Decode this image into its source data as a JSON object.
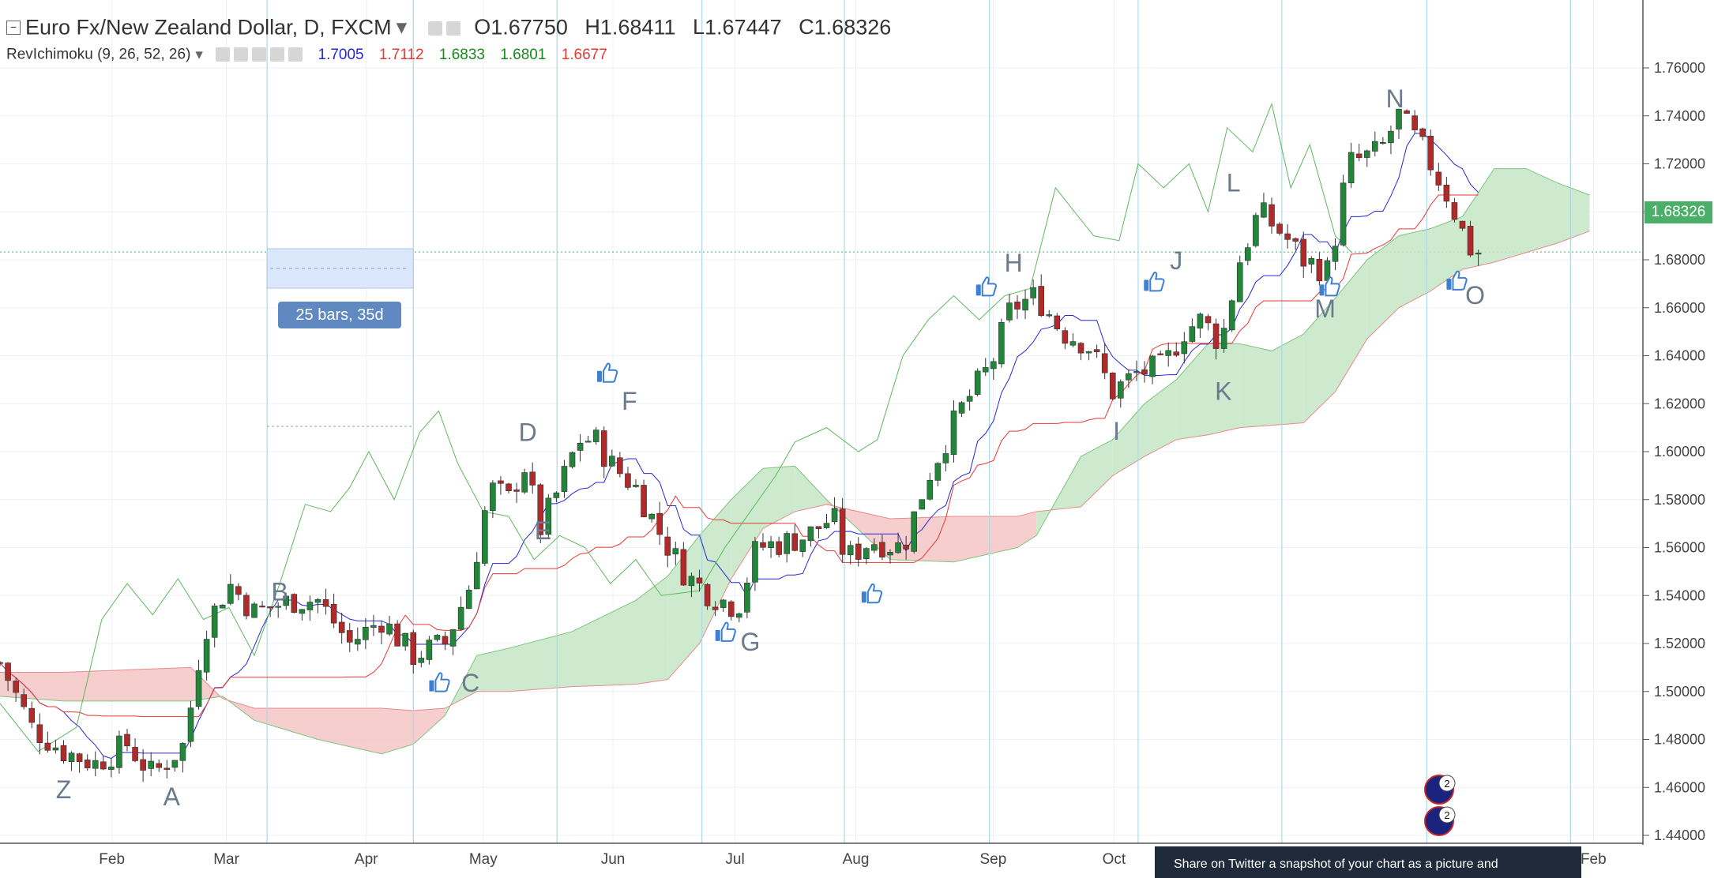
{
  "header": {
    "symbol": "Euro Fx/New Zealand Dollar, D, FXCM",
    "open_label": "O",
    "open": "1.67750",
    "high_label": "H",
    "high": "1.68411",
    "low_label": "L",
    "low": "1.67447",
    "close_label": "C",
    "close": "1.68326"
  },
  "indicator": {
    "name": "RevIchimoku (9, 26, 52, 26)",
    "values": [
      "1.7005",
      "1.7112",
      "1.6833",
      "1.6801",
      "1.6677"
    ],
    "colors": [
      "#2727d6",
      "#e53935",
      "#1b8a1b",
      "#1b8a1b",
      "#e53935"
    ]
  },
  "measure_tip": "25 bars, 35d",
  "price_tag": "1.68326",
  "twitter_tip": "Share on Twitter a snapshot of your chart as a picture and",
  "flag_badges": [
    "2",
    "2"
  ],
  "colors": {
    "up": "#22863a",
    "down": "#b02a2a",
    "tenkan": "#2727d6",
    "kijun": "#e53935",
    "chikou": "#5cb85c",
    "cloud_bull": "#c5e6c5",
    "cloud_bear": "#f6c5c5",
    "grid": "#eef1f5",
    "vline": "#add8e6"
  },
  "chart_data": {
    "type": "candlestick",
    "title": "Euro Fx/New Zealand Dollar, D, FXCM",
    "ylim": [
      1.44,
      1.76
    ],
    "y_ticks": [
      "1.44000",
      "1.46000",
      "1.48000",
      "1.50000",
      "1.52000",
      "1.54000",
      "1.56000",
      "1.58000",
      "1.60000",
      "1.62000",
      "1.64000",
      "1.66000",
      "1.68000",
      "1.70000",
      "1.72000",
      "1.74000",
      "1.76000"
    ],
    "x_month_labels": [
      "Feb",
      "Mar",
      "Apr",
      "May",
      "Jun",
      "Jul",
      "Aug",
      "Sep",
      "Oct",
      "Feb"
    ],
    "pivot_labels": [
      {
        "label": "Z",
        "t": 0.5,
        "price": 1.4555
      },
      {
        "label": "A",
        "t": 1.35,
        "price": 1.4525
      },
      {
        "label": "B",
        "t": 2.2,
        "price": 1.538
      },
      {
        "label": "C",
        "t": 3.7,
        "price": 1.5
      },
      {
        "label": "D",
        "t": 4.15,
        "price": 1.6045
      },
      {
        "label": "E",
        "t": 4.27,
        "price": 1.5635
      },
      {
        "label": "F",
        "t": 4.95,
        "price": 1.6175
      },
      {
        "label": "G",
        "t": 5.9,
        "price": 1.517
      },
      {
        "label": "H",
        "t": 7.97,
        "price": 1.675
      },
      {
        "label": "I",
        "t": 8.78,
        "price": 1.605
      },
      {
        "label": "J",
        "t": 9.25,
        "price": 1.676
      },
      {
        "label": "K",
        "t": 9.62,
        "price": 1.6215
      },
      {
        "label": "L",
        "t": 9.7,
        "price": 1.7085
      },
      {
        "label": "M",
        "t": 10.42,
        "price": 1.656
      },
      {
        "label": "N",
        "t": 10.97,
        "price": 1.7435
      },
      {
        "label": "O",
        "t": 11.6,
        "price": 1.6615
      }
    ],
    "likes": [
      {
        "t": 3.45,
        "price": 1.504
      },
      {
        "t": 4.77,
        "price": 1.633
      },
      {
        "t": 5.7,
        "price": 1.525
      },
      {
        "t": 6.85,
        "price": 1.541
      },
      {
        "t": 7.75,
        "price": 1.669
      },
      {
        "t": 9.07,
        "price": 1.671
      },
      {
        "t": 10.45,
        "price": 1.669
      },
      {
        "t": 11.45,
        "price": 1.6715
      }
    ],
    "anchors": [
      [
        0.0,
        1.512
      ],
      [
        0.25,
        1.485
      ],
      [
        0.5,
        1.475
      ],
      [
        0.75,
        1.47
      ],
      [
        1.0,
        1.478
      ],
      [
        1.2,
        1.465
      ],
      [
        1.45,
        1.478
      ],
      [
        1.6,
        1.525
      ],
      [
        1.8,
        1.545
      ],
      [
        2.0,
        1.533
      ],
      [
        2.3,
        1.538
      ],
      [
        2.5,
        1.538
      ],
      [
        2.75,
        1.52
      ],
      [
        3.0,
        1.53
      ],
      [
        3.25,
        1.515
      ],
      [
        3.5,
        1.52
      ],
      [
        3.7,
        1.545
      ],
      [
        3.85,
        1.585
      ],
      [
        4.0,
        1.58
      ],
      [
        4.12,
        1.595
      ],
      [
        4.25,
        1.568
      ],
      [
        4.4,
        1.585
      ],
      [
        4.55,
        1.605
      ],
      [
        4.68,
        1.605
      ],
      [
        4.8,
        1.595
      ],
      [
        5.0,
        1.585
      ],
      [
        5.2,
        1.565
      ],
      [
        5.4,
        1.548
      ],
      [
        5.6,
        1.54
      ],
      [
        5.8,
        1.535
      ],
      [
        5.95,
        1.56
      ],
      [
        6.15,
        1.562
      ],
      [
        6.35,
        1.565
      ],
      [
        6.55,
        1.573
      ],
      [
        6.65,
        1.555
      ],
      [
        6.85,
        1.563
      ],
      [
        7.1,
        1.56
      ],
      [
        7.3,
        1.59
      ],
      [
        7.55,
        1.617
      ],
      [
        7.8,
        1.637
      ],
      [
        7.95,
        1.66
      ],
      [
        8.15,
        1.665
      ],
      [
        8.35,
        1.65
      ],
      [
        8.55,
        1.645
      ],
      [
        8.75,
        1.625
      ],
      [
        8.95,
        1.633
      ],
      [
        9.15,
        1.635
      ],
      [
        9.3,
        1.65
      ],
      [
        9.45,
        1.655
      ],
      [
        9.6,
        1.645
      ],
      [
        9.75,
        1.68
      ],
      [
        9.9,
        1.7
      ],
      [
        10.1,
        1.69
      ],
      [
        10.25,
        1.68
      ],
      [
        10.45,
        1.675
      ],
      [
        10.6,
        1.72
      ],
      [
        10.85,
        1.725
      ],
      [
        11.0,
        1.74
      ],
      [
        11.2,
        1.725
      ],
      [
        11.4,
        1.705
      ],
      [
        11.55,
        1.685
      ],
      [
        11.63,
        1.683
      ]
    ],
    "cloud": [
      [
        0.0,
        1.508,
        1.498
      ],
      [
        0.5,
        1.508,
        1.496
      ],
      [
        1.0,
        1.509,
        1.496
      ],
      [
        1.5,
        1.51,
        1.496
      ],
      [
        1.75,
        1.497,
        1.498
      ],
      [
        2.0,
        1.493,
        1.488
      ],
      [
        2.5,
        1.493,
        1.48
      ],
      [
        3.0,
        1.493,
        1.474
      ],
      [
        3.25,
        1.492,
        1.478
      ],
      [
        3.5,
        1.493,
        1.49
      ],
      [
        3.75,
        1.5,
        1.515
      ],
      [
        4.0,
        1.5,
        1.518
      ],
      [
        4.5,
        1.502,
        1.525
      ],
      [
        5.0,
        1.503,
        1.538
      ],
      [
        5.25,
        1.505,
        1.548
      ],
      [
        5.5,
        1.52,
        1.565
      ],
      [
        5.75,
        1.547,
        1.58
      ],
      [
        6.0,
        1.568,
        1.593
      ],
      [
        6.25,
        1.575,
        1.594
      ],
      [
        6.5,
        1.578,
        1.58
      ],
      [
        7.0,
        1.572,
        1.555
      ],
      [
        7.5,
        1.573,
        1.554
      ],
      [
        8.0,
        1.573,
        1.56
      ],
      [
        8.15,
        1.575,
        1.565
      ],
      [
        8.5,
        1.577,
        1.598
      ],
      [
        8.75,
        1.59,
        1.605
      ],
      [
        9.0,
        1.598,
        1.62
      ],
      [
        9.25,
        1.605,
        1.63
      ],
      [
        9.5,
        1.607,
        1.645
      ],
      [
        9.75,
        1.61,
        1.645
      ],
      [
        10.0,
        1.611,
        1.642
      ],
      [
        10.25,
        1.612,
        1.649
      ],
      [
        10.5,
        1.625,
        1.664
      ],
      [
        10.75,
        1.647,
        1.68
      ],
      [
        11.0,
        1.66,
        1.69
      ],
      [
        11.25,
        1.667,
        1.693
      ],
      [
        11.5,
        1.676,
        1.698
      ],
      [
        11.75,
        1.679,
        1.718
      ],
      [
        12.0,
        1.683,
        1.718
      ],
      [
        12.25,
        1.687,
        1.712
      ],
      [
        12.5,
        1.692,
        1.707
      ]
    ],
    "chikou": [
      [
        0.0,
        1.495
      ],
      [
        0.3,
        1.475
      ],
      [
        0.6,
        1.485
      ],
      [
        0.8,
        1.53
      ],
      [
        1.0,
        1.545
      ],
      [
        1.2,
        1.532
      ],
      [
        1.4,
        1.547
      ],
      [
        1.6,
        1.53
      ],
      [
        1.8,
        1.535
      ],
      [
        2.0,
        1.515
      ],
      [
        2.2,
        1.545
      ],
      [
        2.4,
        1.578
      ],
      [
        2.6,
        1.575
      ],
      [
        2.75,
        1.585
      ],
      [
        2.9,
        1.6
      ],
      [
        3.1,
        1.58
      ],
      [
        3.3,
        1.608
      ],
      [
        3.45,
        1.617
      ],
      [
        3.6,
        1.595
      ],
      [
        3.8,
        1.575
      ],
      [
        4.0,
        1.573
      ],
      [
        4.2,
        1.555
      ],
      [
        4.4,
        1.565
      ],
      [
        4.6,
        1.56
      ],
      [
        4.8,
        1.545
      ],
      [
        5.0,
        1.555
      ],
      [
        5.2,
        1.54
      ],
      [
        5.5,
        1.542
      ],
      [
        5.7,
        1.56
      ],
      [
        5.9,
        1.575
      ],
      [
        6.1,
        1.59
      ],
      [
        6.25,
        1.604
      ],
      [
        6.5,
        1.61
      ],
      [
        6.75,
        1.6
      ],
      [
        6.9,
        1.605
      ],
      [
        7.1,
        1.64
      ],
      [
        7.3,
        1.655
      ],
      [
        7.5,
        1.665
      ],
      [
        7.7,
        1.655
      ],
      [
        7.9,
        1.665
      ],
      [
        8.1,
        1.668
      ],
      [
        8.3,
        1.71
      ],
      [
        8.45,
        1.7
      ],
      [
        8.6,
        1.69
      ],
      [
        8.8,
        1.688
      ],
      [
        8.95,
        1.72
      ],
      [
        9.15,
        1.71
      ],
      [
        9.35,
        1.72
      ],
      [
        9.5,
        1.7
      ],
      [
        9.65,
        1.735
      ],
      [
        9.85,
        1.725
      ],
      [
        10.0,
        1.745
      ],
      [
        10.15,
        1.71
      ],
      [
        10.3,
        1.728
      ],
      [
        10.5,
        1.69
      ],
      [
        10.63,
        1.683
      ]
    ]
  }
}
